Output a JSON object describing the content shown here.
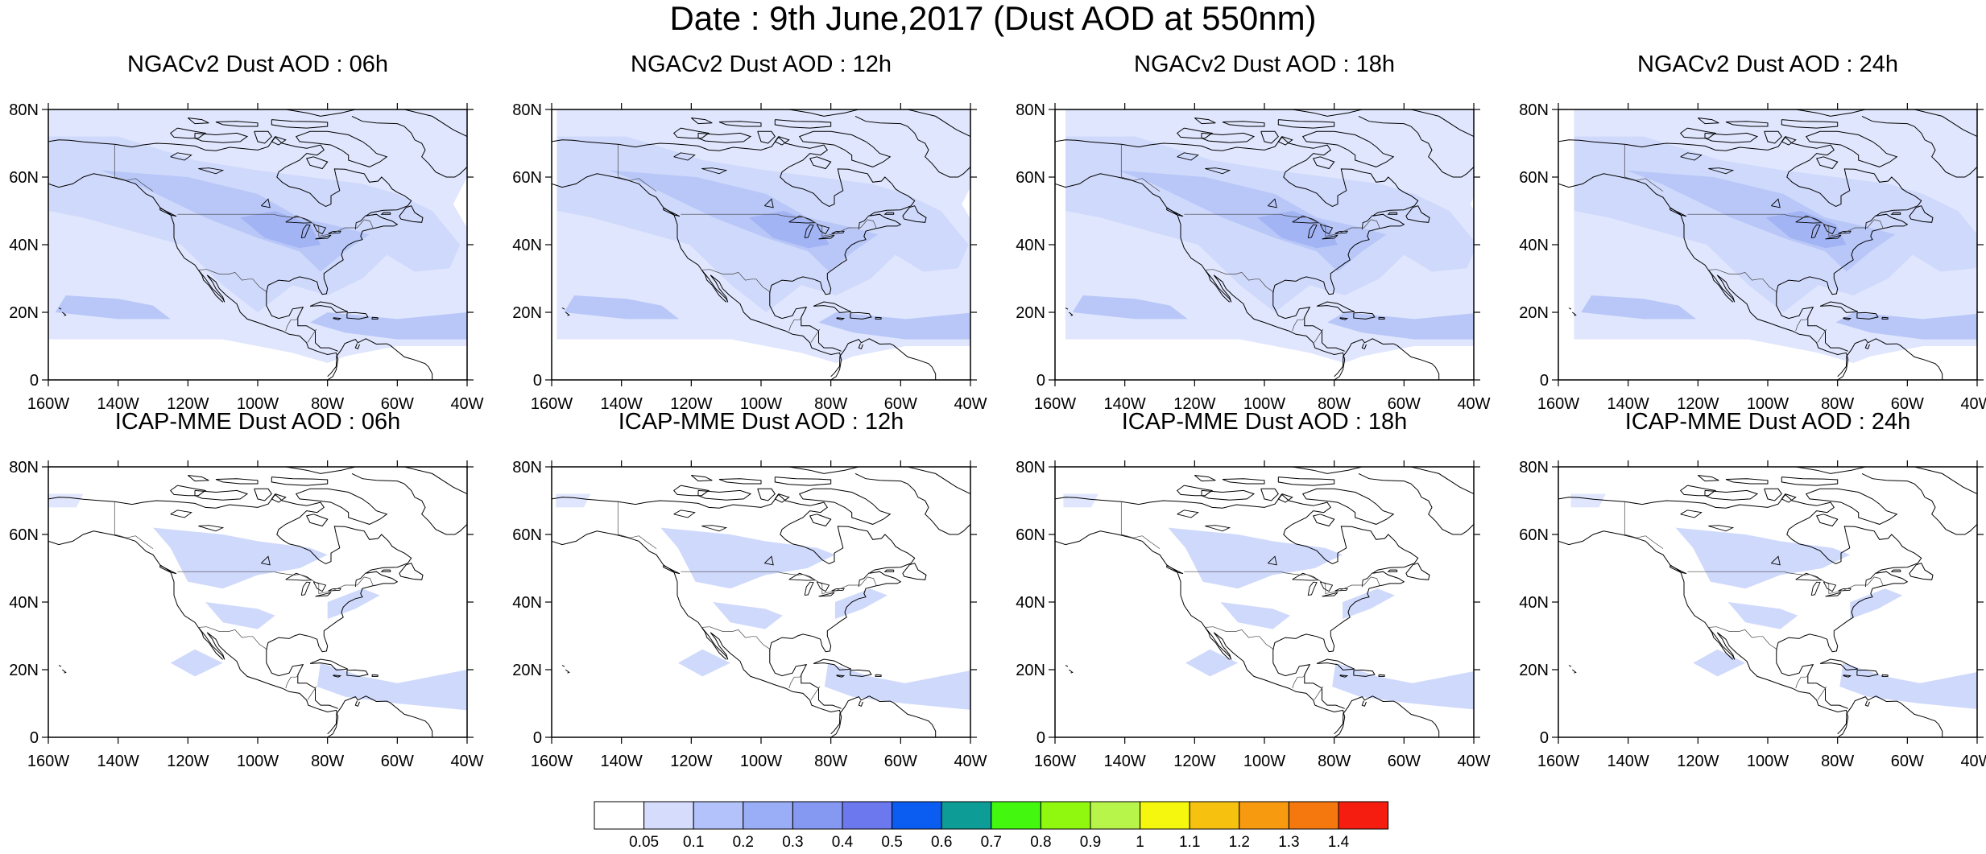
{
  "title": "Date : 9th June,2017 (Dust AOD at 550nm)",
  "map_extent": {
    "lon": [
      -160,
      -40
    ],
    "lat": [
      0,
      80
    ]
  },
  "x_tick_labels": [
    "160W",
    "140W",
    "120W",
    "100W",
    "80W",
    "60W",
    "40W"
  ],
  "y_tick_labels": [
    "0",
    "20N",
    "40N",
    "60N",
    "80N"
  ],
  "panels": [
    {
      "title": "NGACv2 Dust AOD : 06h",
      "model": "NGACv2",
      "hour": "06h"
    },
    {
      "title": "NGACv2 Dust AOD : 12h",
      "model": "NGACv2",
      "hour": "12h"
    },
    {
      "title": "NGACv2 Dust AOD : 18h",
      "model": "NGACv2",
      "hour": "18h"
    },
    {
      "title": "NGACv2 Dust AOD : 24h",
      "model": "NGACv2",
      "hour": "24h"
    },
    {
      "title": "ICAP-MME Dust AOD : 06h",
      "model": "ICAP-MME",
      "hour": "06h"
    },
    {
      "title": "ICAP-MME Dust AOD : 12h",
      "model": "ICAP-MME",
      "hour": "12h"
    },
    {
      "title": "ICAP-MME Dust AOD : 18h",
      "model": "ICAP-MME",
      "hour": "18h"
    },
    {
      "title": "ICAP-MME Dust AOD : 24h",
      "model": "ICAP-MME",
      "hour": "24h"
    }
  ],
  "colorbar": {
    "labels": [
      "0.05",
      "0.1",
      "0.2",
      "0.3",
      "0.4",
      "0.5",
      "0.6",
      "0.7",
      "0.8",
      "0.9",
      "1",
      "1.1",
      "1.2",
      "1.3",
      "1.4"
    ],
    "colors": [
      "#ffffff",
      "#d5dcfc",
      "#b3c2fa",
      "#9aadf7",
      "#8598f2",
      "#6c78ee",
      "#0b5cf0",
      "#0e9c96",
      "#43f70f",
      "#90f70f",
      "#b8f54a",
      "#f5f70f",
      "#f7c20f",
      "#f79a0f",
      "#f5780f",
      "#f51d0f"
    ]
  },
  "fill_colors": {
    "very_light": "#e0e6fd",
    "light": "#cfd9fb",
    "medium": "#b8c7f8",
    "dark": "#a3b4f5",
    "coast": "#000000"
  }
}
